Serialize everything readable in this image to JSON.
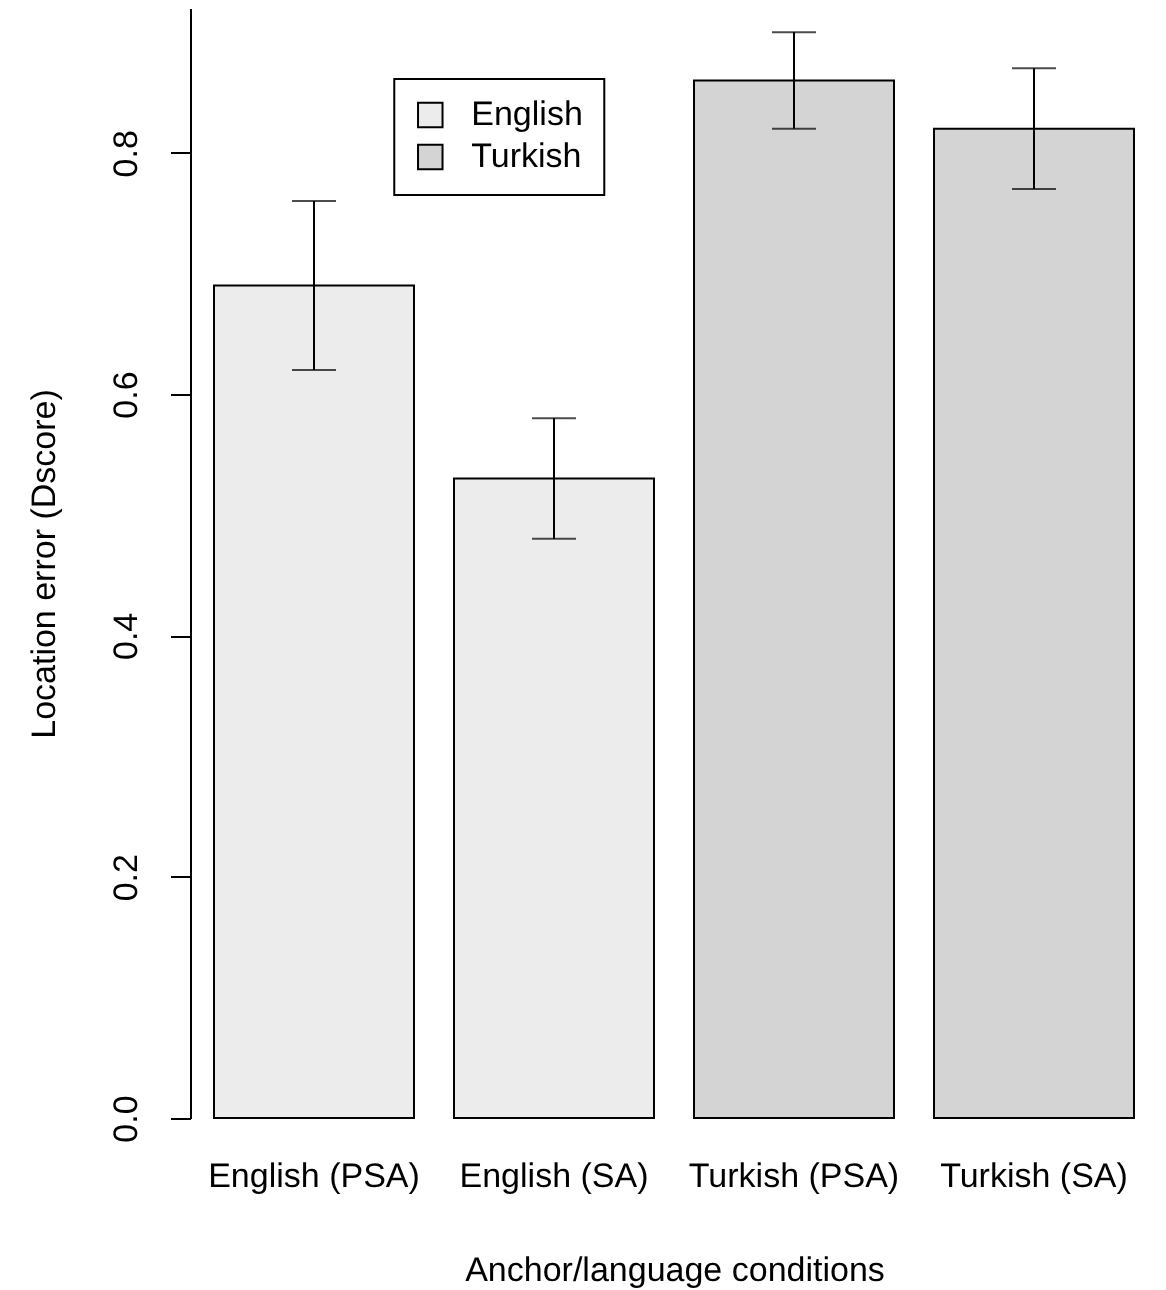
{
  "chart_data": {
    "type": "bar",
    "categories": [
      "English (PSA)",
      "English (SA)",
      "Turkish (PSA)",
      "Turkish (SA)"
    ],
    "series": [
      {
        "name": "English",
        "color": "#ececec",
        "values": [
          0.69,
          0.53,
          null,
          null
        ],
        "errors": [
          0.07,
          0.05,
          null,
          null
        ]
      },
      {
        "name": "Turkish",
        "color": "#d4d4d4",
        "values": [
          null,
          null,
          0.86,
          0.82
        ],
        "errors": [
          null,
          null,
          0.04,
          0.05
        ]
      }
    ],
    "xlabel": "Anchor/language conditions",
    "ylabel": "Location error (Dscore)",
    "ylim": [
      0,
      0.92
    ],
    "yticks": [
      {
        "value": 0,
        "label": "0.0"
      },
      0.2,
      0.4,
      0.6,
      0.8
    ],
    "legend": "top left"
  }
}
